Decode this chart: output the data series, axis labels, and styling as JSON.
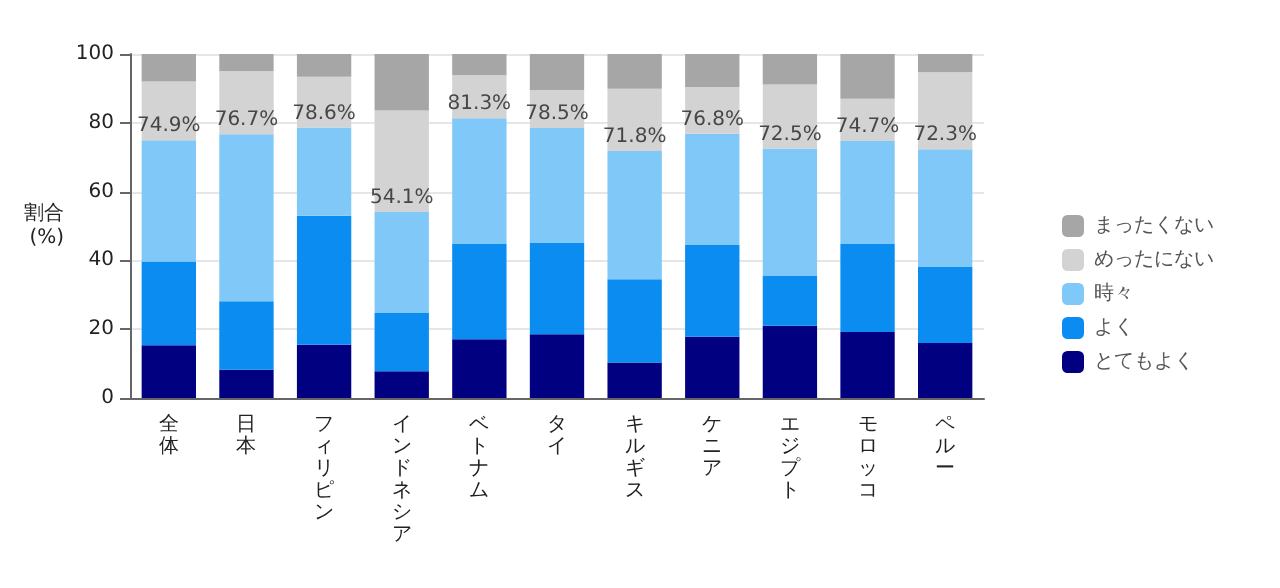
{
  "chart_data": {
    "type": "bar",
    "stacked": true,
    "ylabel": "割合\n(%)",
    "categories": [
      "全体",
      "日本",
      "フィリピン",
      "インドネシア",
      "ベトナム",
      "タイ",
      "キルギス",
      "ケニア",
      "エジプト",
      "モロッコ",
      "ペルー"
    ],
    "series": [
      {
        "name": "とてもよく",
        "color": "#000080",
        "values": [
          15.3,
          8.2,
          15.5,
          7.8,
          17.1,
          18.5,
          10.3,
          17.8,
          21.0,
          19.2,
          16.0
        ]
      },
      {
        "name": "よく",
        "color": "#0a8cf0",
        "values": [
          24.4,
          19.9,
          37.5,
          16.9,
          27.7,
          26.7,
          24.2,
          26.7,
          14.6,
          25.6,
          22.1
        ]
      },
      {
        "name": "時々",
        "color": "#80c8f8",
        "values": [
          35.2,
          48.6,
          25.6,
          29.4,
          36.5,
          33.3,
          37.3,
          32.3,
          36.9,
          29.9,
          34.2
        ]
      },
      {
        "name": "めったにない",
        "color": "#d3d3d3",
        "values": [
          17.1,
          18.3,
          14.8,
          29.5,
          12.5,
          11.0,
          18.1,
          13.6,
          18.6,
          12.3,
          22.4
        ]
      },
      {
        "name": "まったくない",
        "color": "#a6a6a6",
        "values": [
          8.0,
          5.0,
          6.6,
          16.4,
          6.2,
          10.5,
          10.1,
          9.6,
          8.9,
          13.0,
          5.3
        ]
      }
    ],
    "annotations": [
      {
        "text": "74.9%",
        "x": "全体",
        "y": 74.9
      },
      {
        "text": "76.7%",
        "x": "日本",
        "y": 76.7
      },
      {
        "text": "78.6%",
        "x": "フィリピン",
        "y": 78.6
      },
      {
        "text": "54.1%",
        "x": "インドネシア",
        "y": 54.1
      },
      {
        "text": "81.3%",
        "x": "ベトナム",
        "y": 81.3
      },
      {
        "text": "78.5%",
        "x": "タイ",
        "y": 78.5
      },
      {
        "text": "71.8%",
        "x": "キルギス",
        "y": 71.8
      },
      {
        "text": "76.8%",
        "x": "ケニア",
        "y": 76.8
      },
      {
        "text": "72.5%",
        "x": "エジプト",
        "y": 72.5
      },
      {
        "text": "74.7%",
        "x": "モロッコ",
        "y": 74.7
      },
      {
        "text": "72.3%",
        "x": "ペルー",
        "y": 72.3
      }
    ],
    "ylim": [
      0,
      100
    ],
    "yticks": [
      0,
      20,
      40,
      60,
      80,
      100
    ],
    "grid": "y",
    "legend": "right"
  }
}
